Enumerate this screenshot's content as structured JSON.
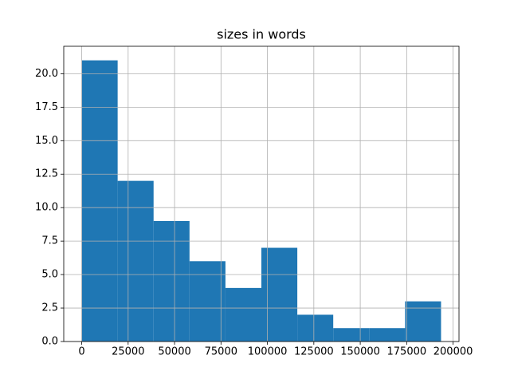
{
  "chart_data": {
    "type": "histogram",
    "title": "sizes in words",
    "bins": [
      0,
      19350,
      38700,
      58050,
      77400,
      96750,
      116100,
      135450,
      154800,
      174150,
      193500
    ],
    "values": [
      21,
      12,
      9,
      6,
      4,
      7,
      2,
      1,
      1,
      3
    ],
    "color": "#1f77b4",
    "xlim": [
      -9675,
      203175
    ],
    "xticks": [
      0,
      25000,
      50000,
      75000,
      100000,
      125000,
      150000,
      175000,
      200000
    ],
    "ylim": [
      0,
      22.05
    ],
    "yticks": [
      {
        "value": 0,
        "label": "0.0"
      },
      2.5,
      {
        "value": 5,
        "label": "5.0"
      },
      7.5,
      {
        "value": 10,
        "label": "10.0"
      },
      12.5,
      {
        "value": 15,
        "label": "15.0"
      },
      17.5,
      {
        "value": 20,
        "label": "20.0"
      }
    ],
    "grid": true
  }
}
